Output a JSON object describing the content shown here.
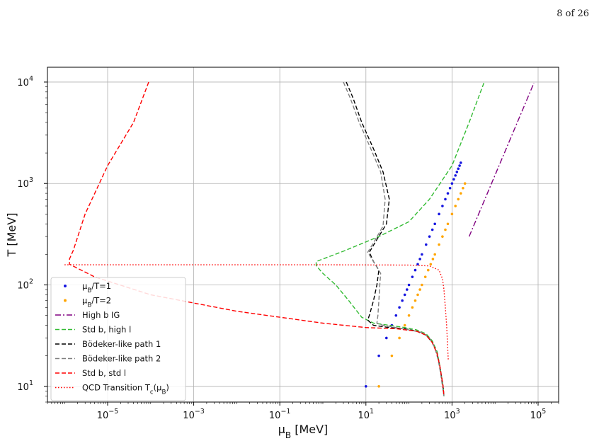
{
  "page": {
    "number_text": "8 of 26"
  },
  "chart_data": {
    "type": "line",
    "xscale": "log",
    "yscale": "log",
    "xlim": [
      4e-07,
      300000.0
    ],
    "ylim": [
      7,
      14000
    ],
    "grid": true,
    "xticks": [
      1e-05,
      0.001,
      0.1,
      10,
      1000.0,
      100000.0
    ],
    "xtick_labels": [
      {
        "base": "10",
        "exp": "−5"
      },
      {
        "base": "10",
        "exp": "−3"
      },
      {
        "base": "10",
        "exp": "−1"
      },
      {
        "base": "10",
        "exp": "1"
      },
      {
        "base": "10",
        "exp": "3"
      },
      {
        "base": "10",
        "exp": "5"
      }
    ],
    "yticks": [
      10,
      100,
      1000,
      10000
    ],
    "ytick_labels": [
      {
        "base": "10",
        "exp": "1"
      },
      {
        "base": "10",
        "exp": "2"
      },
      {
        "base": "10",
        "exp": "3"
      },
      {
        "base": "10",
        "exp": "4"
      }
    ],
    "xlabel": "μ_B [MeV]",
    "ylabel": "T [MeV]",
    "legend_position": "lower-left",
    "series": [
      {
        "name": "μ_B/T=1",
        "style": "dots",
        "color": "#1515e0",
        "points": [
          [
            10,
            10
          ],
          [
            20,
            20
          ],
          [
            30,
            30
          ],
          [
            40,
            40
          ],
          [
            50,
            50
          ],
          [
            60,
            60
          ],
          [
            70,
            70
          ],
          [
            80,
            80
          ],
          [
            90,
            90
          ],
          [
            100,
            100
          ],
          [
            120,
            120
          ],
          [
            140,
            140
          ],
          [
            160,
            160
          ],
          [
            180,
            180
          ],
          [
            200,
            200
          ],
          [
            250,
            250
          ],
          [
            300,
            300
          ],
          [
            350,
            350
          ],
          [
            400,
            400
          ],
          [
            500,
            500
          ],
          [
            600,
            600
          ],
          [
            700,
            700
          ],
          [
            800,
            800
          ],
          [
            900,
            900
          ],
          [
            1000,
            1000
          ],
          [
            1100,
            1100
          ],
          [
            1200,
            1200
          ],
          [
            1300,
            1300
          ],
          [
            1400,
            1400
          ],
          [
            1500,
            1500
          ],
          [
            1600,
            1600
          ]
        ]
      },
      {
        "name": "μ_B/T=2",
        "style": "dots",
        "color": "#ffa500",
        "points": [
          [
            20,
            10
          ],
          [
            40,
            20
          ],
          [
            60,
            30
          ],
          [
            80,
            40
          ],
          [
            100,
            50
          ],
          [
            120,
            60
          ],
          [
            140,
            70
          ],
          [
            160,
            80
          ],
          [
            180,
            90
          ],
          [
            200,
            100
          ],
          [
            240,
            120
          ],
          [
            280,
            140
          ],
          [
            320,
            160
          ],
          [
            360,
            180
          ],
          [
            400,
            200
          ],
          [
            500,
            250
          ],
          [
            600,
            300
          ],
          [
            700,
            350
          ],
          [
            800,
            400
          ],
          [
            1000,
            500
          ],
          [
            1200,
            600
          ],
          [
            1400,
            700
          ],
          [
            1600,
            800
          ],
          [
            1800,
            900
          ],
          [
            2000,
            1000
          ]
        ]
      },
      {
        "name": "High b IG",
        "style": "dashdot",
        "color": "#800080",
        "points": [
          [
            2500,
            300
          ],
          [
            80000,
            9800
          ]
        ]
      },
      {
        "name": "Std b, high l",
        "style": "dashed",
        "color": "#33bb33",
        "points": [
          [
            5500,
            9800
          ],
          [
            2500,
            4000
          ],
          [
            1000,
            1500
          ],
          [
            300,
            700
          ],
          [
            100,
            420
          ],
          [
            20,
            300
          ],
          [
            3,
            215
          ],
          [
            0.7,
            170
          ],
          [
            0.7,
            155
          ],
          [
            1,
            130
          ],
          [
            2,
            100
          ],
          [
            4,
            70
          ],
          [
            8,
            48
          ],
          [
            15,
            42
          ],
          [
            35,
            40
          ],
          [
            80,
            38
          ],
          [
            150,
            36
          ],
          [
            250,
            33
          ],
          [
            350,
            28
          ],
          [
            450,
            22
          ],
          [
            520,
            16
          ],
          [
            580,
            12
          ],
          [
            620,
            10
          ],
          [
            650,
            8
          ]
        ]
      },
      {
        "name": "Bödeker-like path 1",
        "style": "dashed",
        "color": "#000000",
        "points": [
          [
            3.5,
            10000
          ],
          [
            5,
            7000
          ],
          [
            8,
            4000
          ],
          [
            15,
            2200
          ],
          [
            25,
            1300
          ],
          [
            35,
            700
          ],
          [
            30,
            400
          ],
          [
            18,
            280
          ],
          [
            12,
            210
          ],
          [
            15,
            170
          ],
          [
            20,
            140
          ],
          [
            18,
            100
          ],
          [
            15,
            70
          ],
          [
            12,
            50
          ],
          [
            11,
            45
          ],
          [
            15,
            40
          ],
          [
            35,
            38
          ],
          [
            80,
            37
          ],
          [
            150,
            35
          ],
          [
            250,
            32
          ],
          [
            350,
            27
          ],
          [
            450,
            21
          ],
          [
            520,
            16
          ],
          [
            580,
            12
          ],
          [
            620,
            10
          ],
          [
            650,
            8
          ]
        ]
      },
      {
        "name": "Bödeker-like path 2",
        "style": "dashed",
        "color": "#808080",
        "points": [
          [
            3,
            10000
          ],
          [
            4.3,
            7000
          ],
          [
            7,
            4000
          ],
          [
            13,
            2200
          ],
          [
            22,
            1300
          ],
          [
            28,
            700
          ],
          [
            25,
            380
          ],
          [
            15,
            260
          ],
          [
            11,
            210
          ],
          [
            15,
            170
          ],
          [
            22,
            130
          ],
          [
            21,
            100
          ],
          [
            20,
            70
          ],
          [
            19,
            50
          ],
          [
            18,
            42
          ],
          [
            25,
            40
          ],
          [
            50,
            38
          ],
          [
            100,
            36
          ],
          [
            200,
            34
          ],
          [
            300,
            30
          ],
          [
            400,
            24
          ],
          [
            480,
            18
          ],
          [
            550,
            13
          ],
          [
            600,
            10
          ],
          [
            650,
            8
          ]
        ]
      },
      {
        "name": "Std b, std l",
        "style": "dashed",
        "color": "#ff0000",
        "points": [
          [
            9e-05,
            10000
          ],
          [
            4e-05,
            4000
          ],
          [
            1e-05,
            1500
          ],
          [
            3e-06,
            500
          ],
          [
            1.6e-06,
            220
          ],
          [
            1.3e-06,
            180
          ],
          [
            1.3e-06,
            160
          ],
          [
            5e-06,
            120
          ],
          [
            0.0001,
            80
          ],
          [
            0.01,
            55
          ],
          [
            1,
            42
          ],
          [
            10,
            38
          ],
          [
            50,
            37
          ],
          [
            150,
            35
          ],
          [
            250,
            32
          ],
          [
            350,
            27
          ],
          [
            450,
            21
          ],
          [
            520,
            16
          ],
          [
            580,
            12
          ],
          [
            620,
            10
          ],
          [
            650,
            8
          ]
        ]
      },
      {
        "name": "QCD Transition T_c(μ_B)",
        "style": "dotted",
        "color": "#ff0000",
        "points": [
          [
            1e-06,
            158
          ],
          [
            1,
            158
          ],
          [
            100,
            157
          ],
          [
            300,
            154
          ],
          [
            500,
            140
          ],
          [
            600,
            115
          ],
          [
            650,
            90
          ],
          [
            700,
            60
          ],
          [
            750,
            40
          ],
          [
            790,
            25
          ],
          [
            820,
            18
          ]
        ]
      }
    ],
    "legend": [
      {
        "marker": "dot",
        "color": "#1515e0",
        "label": "μ_B/T=1"
      },
      {
        "marker": "dot",
        "color": "#ffa500",
        "label": "μ_B/T=2"
      },
      {
        "marker": "dashdot",
        "color": "#800080",
        "label": "High b IG"
      },
      {
        "marker": "dashed",
        "color": "#33bb33",
        "label": "Std b, high l"
      },
      {
        "marker": "dashed",
        "color": "#000000",
        "label": "Bödeker-like path 1"
      },
      {
        "marker": "dashed",
        "color": "#808080",
        "label": "Bödeker-like path 2"
      },
      {
        "marker": "dashed",
        "color": "#ff0000",
        "label": "Std b, std l"
      },
      {
        "marker": "dotted",
        "color": "#ff0000",
        "label": "QCD Transition T_c(μ_B)"
      }
    ]
  }
}
